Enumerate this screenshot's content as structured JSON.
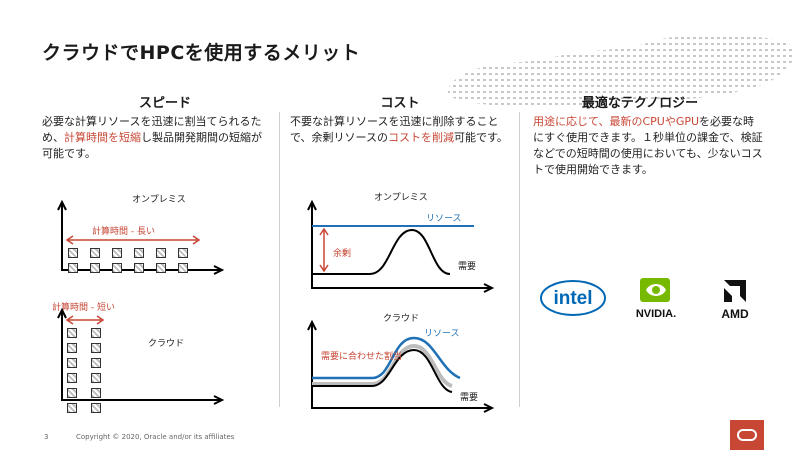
{
  "slide": {
    "title": "クラウドでHPCを使用するメリット",
    "page_number": "3",
    "copyright": "Copyright © 2020, Oracle and/or its affiliates"
  },
  "columns": {
    "speed": {
      "heading": "スピード",
      "text_a": "必要な計算リソースを迅速に割当てられるため、",
      "text_hl": "計算時間を短縮",
      "text_b": "し製品開発期間の短縮が可能です。",
      "onprem_label": "オンプレミス",
      "onprem_time": "計算時間 - 長い",
      "cloud_time": "計算時間 - 短い",
      "cloud_label": "クラウド"
    },
    "cost": {
      "heading": "コスト",
      "text_a": "不要な計算リソースを迅速に削除することで、余剰リソースの",
      "text_hl": "コストを削減",
      "text_b": "可能です。",
      "onprem_label": "オンプレミス",
      "resource": "リソース",
      "surplus": "余剰",
      "demand": "需要",
      "cloud_label": "クラウド",
      "cloud_resource": "リソース",
      "allocation": "需要に合わせた割当",
      "cloud_demand": "需要"
    },
    "tech": {
      "heading": "最適なテクノロジー",
      "text_hl1": "用途に応じて、最新のCPUやGPU",
      "text_b": "を必要な時にすぐ使用できます。１秒単位の課金で、検証などでの短時間の使用においても、少ないコストで使用開始できます。",
      "logos": [
        "intel",
        "NVIDIA.",
        "AMD"
      ]
    }
  },
  "colors": {
    "accent_red": "#c74634",
    "resource_blue": "#1f70b6"
  }
}
